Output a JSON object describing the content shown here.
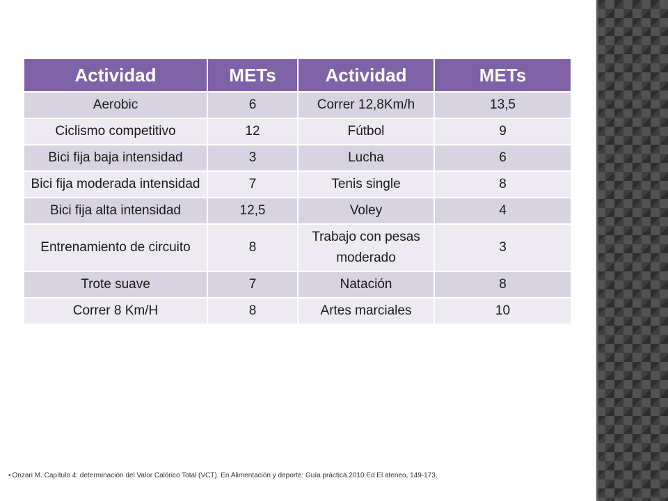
{
  "table": {
    "headers": [
      "Actividad",
      "METs",
      "Actividad",
      "METs"
    ],
    "rows": [
      [
        "Aerobic",
        "6",
        "Correr 12,8Km/h",
        "13,5"
      ],
      [
        "Ciclismo competitivo",
        "12",
        "Fútbol",
        "9"
      ],
      [
        "Bici fija baja intensidad",
        "3",
        "Lucha",
        "6"
      ],
      [
        "Bici fija moderada intensidad",
        "7",
        "Tenis single",
        "8"
      ],
      [
        "Bici fija alta intensidad",
        "12,5",
        "Voley",
        "4"
      ],
      [
        "Entrenamiento de circuito",
        "8",
        "Trabajo con pesas moderado",
        "3"
      ],
      [
        "Trote suave",
        "7",
        "Natación",
        "8"
      ],
      [
        "Correr 8 Km/H",
        "8",
        "Artes marciales",
        "10"
      ]
    ]
  },
  "footnote": {
    "bullet": "•",
    "text": "Onzari M. Capítulo 4: determinación del Valor Calórico Total (VCT). En Alimentación y deporte: Guía práctica.2010 Ed El ateneo, 149-173."
  },
  "colors": {
    "header_bg": "#7f62a6",
    "row_odd_bg": "#d8d3e1",
    "row_even_bg": "#edeaf1",
    "side_panel": "#3e3e3e"
  }
}
